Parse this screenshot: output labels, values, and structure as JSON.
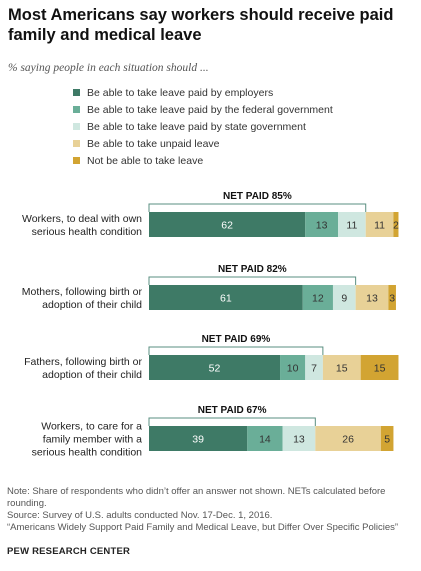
{
  "title": "Most Americans say workers should receive paid family and medical leave",
  "subtitle": "% saying people in each situation should ...",
  "legend": [
    {
      "label": "Be able to take leave paid by employers",
      "color": "#3e7a66"
    },
    {
      "label": "Be able to take leave paid by the federal government",
      "color": "#6aae98"
    },
    {
      "label": "Be able to take leave paid by state government",
      "color": "#cfe7e0"
    },
    {
      "label": "Be able to take unpaid leave",
      "color": "#e8d197"
    },
    {
      "label": "Not be able to take leave",
      "color": "#d2a432"
    }
  ],
  "chart_data": {
    "type": "bar",
    "orientation": "horizontal",
    "stacked": true,
    "categories": [
      [
        "Workers, to deal with own",
        "serious health condition"
      ],
      [
        "Mothers, following birth or",
        "adoption of their child"
      ],
      [
        "Fathers, following birth or",
        "adoption of their child"
      ],
      [
        "Workers, to care for a",
        "family member with a",
        "serious health condition"
      ]
    ],
    "net_labels": [
      "NET PAID 85%",
      "NET PAID 82%",
      "NET PAID 69%",
      "NET PAID 67%"
    ],
    "series": [
      {
        "name": "Be able to take leave paid by employers",
        "values": [
          62,
          61,
          52,
          39
        ]
      },
      {
        "name": "Be able to take leave paid by the federal government",
        "values": [
          13,
          12,
          10,
          14
        ]
      },
      {
        "name": "Be able to take leave paid by state government",
        "values": [
          11,
          9,
          7,
          13
        ]
      },
      {
        "name": "Be able to take unpaid leave",
        "values": [
          11,
          13,
          15,
          26
        ]
      },
      {
        "name": "Not be able to take leave",
        "values": [
          2,
          3,
          15,
          5
        ]
      }
    ],
    "value_label_colors": [
      "#ffffff",
      "#333333",
      "#333333",
      "#333333",
      "#333333"
    ]
  },
  "notes": [
    "Note: Share of respondents who didn’t offer an answer not shown. NETs calculated before rounding.",
    "Source: Survey of U.S. adults conducted Nov. 17-Dec. 1, 2016.",
    "“Americans Widely Support Paid Family and Medical Leave, but Differ Over Specific Policies”"
  ],
  "org": "PEW RESEARCH CENTER"
}
